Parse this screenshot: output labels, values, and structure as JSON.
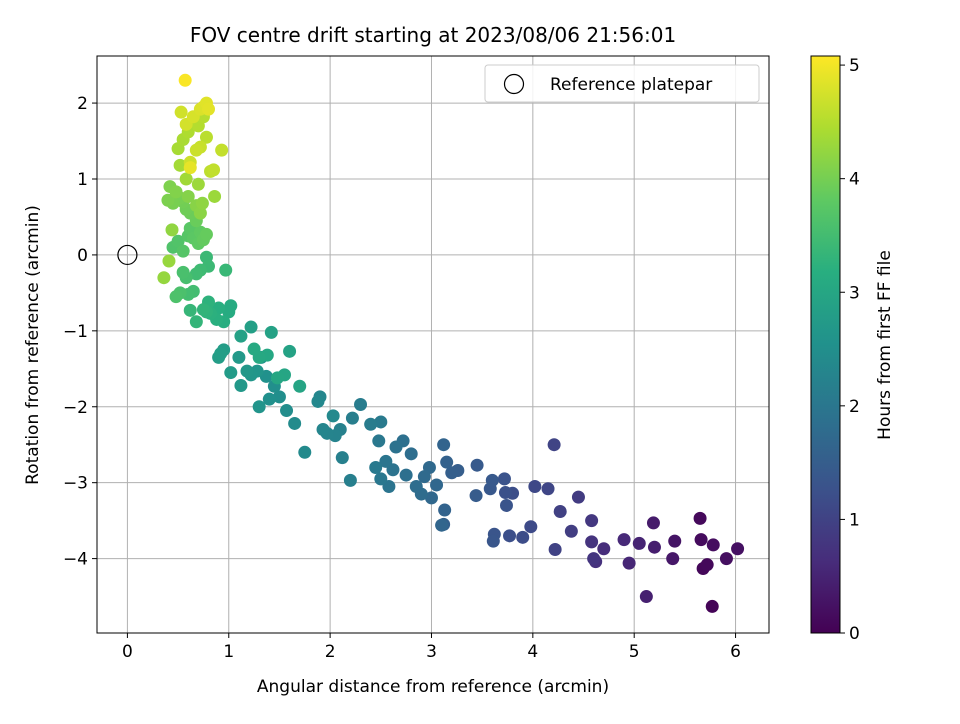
{
  "chart_data": {
    "type": "scatter",
    "title": "FOV centre drift starting at 2023/08/06 21:56:01",
    "xlabel": "Angular distance from reference (arcmin)",
    "ylabel": "Rotation from reference (arcmin)",
    "xlim": [
      -0.3,
      6.33
    ],
    "ylim": [
      -4.98,
      2.62
    ],
    "x_ticks": [
      0,
      1,
      2,
      3,
      4,
      5,
      6
    ],
    "y_ticks": [
      2,
      1,
      0,
      -1,
      -2,
      -3,
      -4
    ],
    "x_tick_labels": [
      "0",
      "1",
      "2",
      "3",
      "4",
      "5",
      "6"
    ],
    "y_tick_labels": [
      "2",
      "1",
      "0",
      "−1",
      "−2",
      "−3",
      "−4"
    ],
    "grid": true,
    "legend_position": "top-right",
    "legend": [
      {
        "label": "Reference platepar",
        "marker": "open-circle",
        "x": 0,
        "y": 0
      }
    ],
    "colorbar": {
      "label": "Hours from first FF file",
      "range": [
        0,
        5.08
      ],
      "ticks": [
        0,
        1,
        2,
        3,
        4,
        5
      ],
      "tick_labels": [
        "0",
        "1",
        "2",
        "3",
        "4",
        "5"
      ],
      "colormap": "viridis"
    },
    "points_format": [
      "x",
      "y",
      "hours"
    ],
    "points": [
      [
        5.77,
        -4.63,
        0.05
      ],
      [
        5.68,
        -4.13,
        0.08
      ],
      [
        5.72,
        -4.08,
        0.1
      ],
      [
        5.65,
        -3.47,
        0.12
      ],
      [
        5.66,
        -3.75,
        0.15
      ],
      [
        5.78,
        -3.82,
        0.18
      ],
      [
        5.91,
        -4.0,
        0.2
      ],
      [
        6.02,
        -3.87,
        0.22
      ],
      [
        5.4,
        -3.77,
        0.28
      ],
      [
        5.38,
        -4.0,
        0.32
      ],
      [
        5.19,
        -3.53,
        0.38
      ],
      [
        5.2,
        -3.85,
        0.42
      ],
      [
        5.12,
        -4.5,
        0.45
      ],
      [
        5.05,
        -3.8,
        0.5
      ],
      [
        4.95,
        -4.06,
        0.55
      ],
      [
        4.9,
        -3.75,
        0.58
      ],
      [
        4.7,
        -3.87,
        0.65
      ],
      [
        4.62,
        -4.04,
        0.7
      ],
      [
        4.58,
        -3.78,
        0.75
      ],
      [
        4.6,
        -4.0,
        0.78
      ],
      [
        4.58,
        -3.5,
        0.82
      ],
      [
        4.45,
        -3.19,
        0.88
      ],
      [
        4.38,
        -3.64,
        0.92
      ],
      [
        4.27,
        -3.38,
        0.97
      ],
      [
        4.22,
        -3.88,
        1.0
      ],
      [
        4.21,
        -2.5,
        1.03
      ],
      [
        4.15,
        -3.08,
        1.07
      ],
      [
        4.02,
        -3.05,
        1.1
      ],
      [
        3.98,
        -3.58,
        1.14
      ],
      [
        3.9,
        -3.72,
        1.18
      ],
      [
        3.8,
        -3.14,
        1.2
      ],
      [
        3.77,
        -3.7,
        1.22
      ],
      [
        3.73,
        -3.13,
        1.25
      ],
      [
        3.72,
        -2.95,
        1.28
      ],
      [
        3.74,
        -3.3,
        1.3
      ],
      [
        3.62,
        -3.68,
        1.33
      ],
      [
        3.61,
        -3.77,
        1.35
      ],
      [
        3.58,
        -3.08,
        1.38
      ],
      [
        3.6,
        -2.97,
        1.4
      ],
      [
        3.45,
        -2.77,
        1.43
      ],
      [
        3.44,
        -3.17,
        1.46
      ],
      [
        3.26,
        -2.84,
        1.5
      ],
      [
        3.2,
        -2.87,
        1.52
      ],
      [
        3.12,
        -3.55,
        1.55
      ],
      [
        3.15,
        -2.73,
        1.57
      ],
      [
        3.13,
        -3.36,
        1.6
      ],
      [
        3.12,
        -2.5,
        1.63
      ],
      [
        3.1,
        -3.56,
        1.66
      ],
      [
        3.05,
        -3.03,
        1.68
      ],
      [
        3.0,
        -3.2,
        1.7
      ],
      [
        2.98,
        -2.8,
        1.72
      ],
      [
        2.93,
        -2.92,
        1.75
      ],
      [
        2.9,
        -3.15,
        1.78
      ],
      [
        2.85,
        -3.05,
        1.8
      ],
      [
        2.8,
        -2.62,
        1.82
      ],
      [
        2.75,
        -2.9,
        1.85
      ],
      [
        2.72,
        -2.45,
        1.87
      ],
      [
        2.65,
        -2.53,
        1.9
      ],
      [
        2.62,
        -2.83,
        1.92
      ],
      [
        2.58,
        -3.05,
        1.95
      ],
      [
        2.55,
        -2.72,
        1.97
      ],
      [
        2.5,
        -2.95,
        2.0
      ],
      [
        2.48,
        -2.45,
        2.02
      ],
      [
        2.45,
        -2.8,
        2.05
      ],
      [
        2.5,
        -2.2,
        2.07
      ],
      [
        2.4,
        -2.23,
        2.1
      ],
      [
        2.3,
        -1.97,
        2.12
      ],
      [
        2.22,
        -2.15,
        2.15
      ],
      [
        2.2,
        -2.97,
        2.17
      ],
      [
        2.12,
        -2.67,
        2.2
      ],
      [
        2.1,
        -2.3,
        2.22
      ],
      [
        2.05,
        -2.38,
        2.25
      ],
      [
        1.97,
        -2.35,
        2.27
      ],
      [
        1.93,
        -2.3,
        2.3
      ],
      [
        1.9,
        -1.87,
        2.32
      ],
      [
        1.88,
        -1.93,
        2.35
      ],
      [
        2.03,
        -2.12,
        2.38
      ],
      [
        1.75,
        -2.6,
        2.4
      ],
      [
        1.65,
        -2.22,
        2.42
      ],
      [
        1.57,
        -2.05,
        2.45
      ],
      [
        1.5,
        -1.87,
        2.48
      ],
      [
        1.45,
        -1.73,
        2.5
      ],
      [
        1.4,
        -1.9,
        2.52
      ],
      [
        1.37,
        -1.6,
        2.55
      ],
      [
        1.32,
        -1.35,
        2.57
      ],
      [
        1.3,
        -2.0,
        2.6
      ],
      [
        1.28,
        -1.53,
        2.62
      ],
      [
        1.22,
        -1.58,
        2.65
      ],
      [
        1.18,
        -1.53,
        2.68
      ],
      [
        1.12,
        -1.72,
        2.7
      ],
      [
        1.1,
        -1.35,
        2.72
      ],
      [
        1.02,
        -1.55,
        2.75
      ],
      [
        0.95,
        -1.25,
        2.78
      ],
      [
        0.9,
        -1.35,
        2.8
      ],
      [
        0.92,
        -1.3,
        2.82
      ],
      [
        1.22,
        -0.95,
        2.85
      ],
      [
        1.12,
        -1.07,
        2.88
      ],
      [
        1.42,
        -1.02,
        2.9
      ],
      [
        1.6,
        -1.27,
        2.92
      ],
      [
        1.7,
        -1.73,
        2.95
      ],
      [
        1.55,
        -1.58,
        2.97
      ],
      [
        1.48,
        -1.62,
        3.0
      ],
      [
        1.38,
        -1.32,
        3.02
      ],
      [
        1.3,
        -1.35,
        3.05
      ],
      [
        1.25,
        -1.24,
        3.07
      ],
      [
        1.02,
        -0.67,
        3.1
      ],
      [
        1.0,
        -0.75,
        3.12
      ],
      [
        0.95,
        -0.88,
        3.15
      ],
      [
        0.9,
        -0.7,
        3.17
      ],
      [
        0.88,
        -0.85,
        3.2
      ],
      [
        0.82,
        -0.77,
        3.22
      ],
      [
        0.8,
        -0.62,
        3.25
      ],
      [
        0.78,
        -0.75,
        3.27
      ],
      [
        0.75,
        -0.72,
        3.3
      ],
      [
        0.68,
        -0.88,
        3.32
      ],
      [
        0.62,
        -0.73,
        3.35
      ],
      [
        0.97,
        -0.2,
        3.38
      ],
      [
        0.78,
        -0.03,
        3.4
      ],
      [
        0.8,
        -0.15,
        3.42
      ],
      [
        0.72,
        -0.2,
        3.45
      ],
      [
        0.68,
        -0.25,
        3.47
      ],
      [
        0.65,
        -0.48,
        3.5
      ],
      [
        0.6,
        -0.52,
        3.52
      ],
      [
        0.58,
        -0.3,
        3.55
      ],
      [
        0.55,
        -0.23,
        3.58
      ],
      [
        0.52,
        -0.5,
        3.6
      ],
      [
        0.48,
        -0.55,
        3.62
      ],
      [
        0.45,
        0.1,
        3.65
      ],
      [
        0.5,
        0.18,
        3.67
      ],
      [
        0.55,
        0.05,
        3.7
      ],
      [
        0.6,
        0.25,
        3.72
      ],
      [
        0.62,
        0.35,
        3.75
      ],
      [
        0.65,
        0.22,
        3.77
      ],
      [
        0.7,
        0.15,
        3.8
      ],
      [
        0.72,
        0.3,
        3.82
      ],
      [
        0.75,
        0.2,
        3.85
      ],
      [
        0.78,
        0.27,
        3.87
      ],
      [
        0.68,
        0.45,
        3.9
      ],
      [
        0.62,
        0.55,
        3.92
      ],
      [
        0.58,
        0.6,
        3.95
      ],
      [
        0.55,
        0.7,
        3.97
      ],
      [
        0.52,
        0.75,
        4.0
      ],
      [
        0.45,
        0.68,
        4.02
      ],
      [
        0.4,
        0.72,
        4.05
      ],
      [
        0.42,
        0.9,
        4.07
      ],
      [
        0.48,
        0.83,
        4.1
      ],
      [
        0.6,
        0.77,
        4.12
      ],
      [
        0.68,
        0.65,
        4.15
      ],
      [
        0.72,
        0.55,
        4.17
      ],
      [
        0.74,
        0.68,
        4.2
      ],
      [
        0.44,
        0.33,
        4.22
      ],
      [
        0.36,
        -0.3,
        4.25
      ],
      [
        0.41,
        -0.08,
        4.27
      ],
      [
        0.86,
        0.77,
        4.3
      ],
      [
        0.7,
        0.93,
        4.32
      ],
      [
        0.58,
        1.0,
        4.35
      ],
      [
        0.52,
        1.18,
        4.37
      ],
      [
        0.5,
        1.4,
        4.4
      ],
      [
        0.55,
        1.52,
        4.42
      ],
      [
        0.6,
        1.62,
        4.45
      ],
      [
        0.65,
        1.75,
        4.47
      ],
      [
        0.7,
        1.7,
        4.5
      ],
      [
        0.75,
        1.82,
        4.52
      ],
      [
        0.78,
        1.55,
        4.55
      ],
      [
        0.82,
        1.1,
        4.57
      ],
      [
        0.85,
        1.12,
        4.6
      ],
      [
        0.93,
        1.38,
        4.62
      ],
      [
        0.72,
        1.42,
        4.65
      ],
      [
        0.68,
        1.38,
        4.68
      ],
      [
        0.62,
        1.22,
        4.7
      ],
      [
        0.53,
        1.88,
        4.72
      ],
      [
        0.58,
        1.72,
        4.75
      ],
      [
        0.65,
        1.82,
        4.77
      ],
      [
        0.72,
        1.92,
        4.8
      ],
      [
        0.75,
        1.95,
        4.82
      ],
      [
        0.78,
        2.0,
        4.85
      ],
      [
        0.8,
        1.92,
        4.87
      ],
      [
        0.62,
        1.15,
        4.9
      ],
      [
        0.57,
        2.3,
        5.05
      ]
    ]
  }
}
